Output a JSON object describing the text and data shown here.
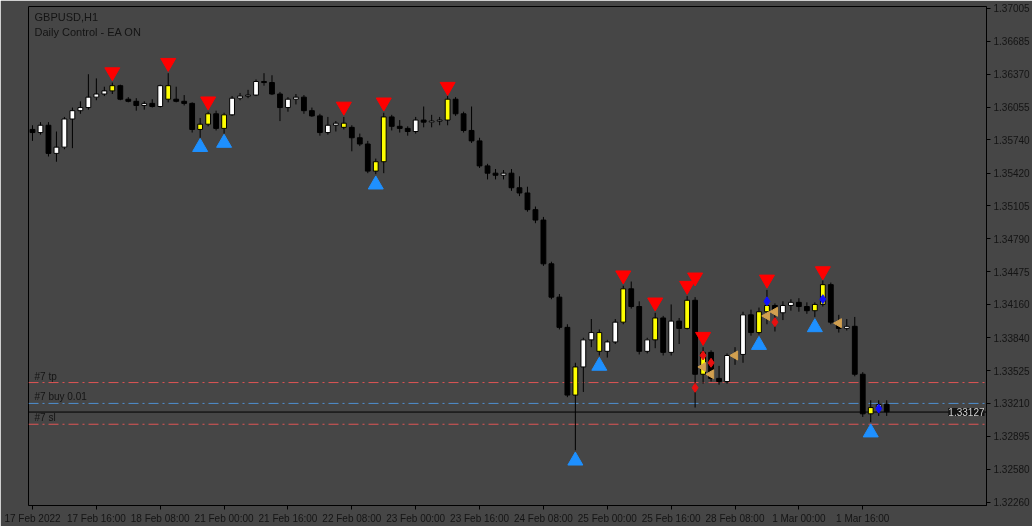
{
  "chart_data": {
    "type": "candlestick",
    "title": "GBPUSD,H1",
    "subtitle": "Daily Control - EA ON",
    "categories": [
      "17 Feb 2022",
      null,
      null,
      null,
      null,
      null,
      null,
      null,
      "17 Feb 16:00",
      null,
      null,
      null,
      null,
      null,
      null,
      null,
      "18 Feb 08:00",
      null,
      null,
      null,
      null,
      null,
      null,
      null,
      "21 Feb 00:00",
      null,
      null,
      null,
      null,
      null,
      null,
      null,
      "21 Feb 16:00",
      null,
      null,
      null,
      null,
      null,
      null,
      null,
      "22 Feb 08:00",
      null,
      null,
      null,
      null,
      null,
      null,
      null,
      "23 Feb 00:00",
      null,
      null,
      null,
      null,
      null,
      null,
      null,
      "23 Feb 16:00",
      null,
      null,
      null,
      null,
      null,
      null,
      null,
      "24 Feb 08:00",
      null,
      null,
      null,
      null,
      null,
      null,
      null,
      "25 Feb 00:00",
      null,
      null,
      null,
      null,
      null,
      null,
      null,
      "25 Feb 16:00",
      null,
      null,
      null,
      null,
      null,
      null,
      null,
      "28 Feb 08:00",
      null,
      null,
      null,
      null,
      null,
      null,
      null,
      "1 Mar 00:00",
      null,
      null,
      null,
      null,
      null,
      null,
      null,
      "1 Mar 16:00",
      null,
      null,
      null,
      null,
      null,
      null,
      null,
      null,
      null,
      null,
      null,
      null,
      null,
      null,
      null
    ],
    "ohlc": [
      [
        1.3584,
        1.3588,
        1.3573,
        1.3581
      ],
      [
        1.3581,
        1.3591,
        1.3579,
        1.3588
      ],
      [
        1.3588,
        1.3591,
        1.3558,
        1.3561
      ],
      [
        1.3561,
        1.3582,
        1.3553,
        1.3567
      ],
      [
        1.3567,
        1.3596,
        1.3565,
        1.3594
      ],
      [
        1.3594,
        1.3605,
        1.3566,
        1.3602
      ],
      [
        1.3602,
        1.3611,
        1.3599,
        1.3605
      ],
      [
        1.3605,
        1.3637,
        1.3603,
        1.3615
      ],
      [
        1.3615,
        1.3633,
        1.3612,
        1.3618
      ],
      [
        1.3618,
        1.3625,
        1.3616,
        1.3621
      ],
      [
        1.3621,
        1.3629,
        1.3618,
        1.3626
      ],
      [
        1.3626,
        1.3627,
        1.3612,
        1.3613
      ],
      [
        1.3613,
        1.3615,
        1.361,
        1.3611
      ],
      [
        1.3611,
        1.3614,
        1.3602,
        1.3607
      ],
      [
        1.3607,
        1.3611,
        1.3603,
        1.3609
      ],
      [
        1.3609,
        1.3613,
        1.3605,
        1.3606
      ],
      [
        1.3606,
        1.3627,
        1.3605,
        1.3626
      ],
      [
        1.3626,
        1.3638,
        1.361,
        1.3613
      ],
      [
        1.3613,
        1.3625,
        1.361,
        1.3611
      ],
      [
        1.3611,
        1.3617,
        1.3607,
        1.3609
      ],
      [
        1.3609,
        1.361,
        1.3581,
        1.3584
      ],
      [
        1.3584,
        1.3595,
        1.3576,
        1.3589
      ],
      [
        1.3589,
        1.3601,
        1.3587,
        1.3599
      ],
      [
        1.3599,
        1.3602,
        1.3583,
        1.3585
      ],
      [
        1.3585,
        1.36,
        1.358,
        1.3598
      ],
      [
        1.3598,
        1.3616,
        1.3597,
        1.3614
      ],
      [
        1.3614,
        1.3619,
        1.3612,
        1.3616
      ],
      [
        1.3616,
        1.3622,
        1.3614,
        1.3617
      ],
      [
        1.3617,
        1.3632,
        1.3616,
        1.363
      ],
      [
        1.363,
        1.3638,
        1.3626,
        1.3629
      ],
      [
        1.3629,
        1.3636,
        1.3617,
        1.3618
      ],
      [
        1.3618,
        1.362,
        1.3592,
        1.3605
      ],
      [
        1.3605,
        1.3615,
        1.3601,
        1.3613
      ],
      [
        1.3613,
        1.3618,
        1.3608,
        1.3615
      ],
      [
        1.3615,
        1.3617,
        1.3599,
        1.3602
      ],
      [
        1.3602,
        1.3605,
        1.3596,
        1.3597
      ],
      [
        1.3597,
        1.3599,
        1.3578,
        1.3581
      ],
      [
        1.3581,
        1.3596,
        1.3579,
        1.3588
      ],
      [
        1.3588,
        1.3592,
        1.3582,
        1.359
      ],
      [
        1.359,
        1.3596,
        1.3584,
        1.3586
      ],
      [
        1.3586,
        1.3588,
        1.3563,
        1.3576
      ],
      [
        1.3576,
        1.358,
        1.3568,
        1.357
      ],
      [
        1.357,
        1.3573,
        1.3542,
        1.3544
      ],
      [
        1.3544,
        1.3556,
        1.3541,
        1.3553
      ],
      [
        1.3553,
        1.36,
        1.3542,
        1.3596
      ],
      [
        1.3596,
        1.3598,
        1.3583,
        1.3587
      ],
      [
        1.3587,
        1.3593,
        1.3581,
        1.3585
      ],
      [
        1.3585,
        1.3587,
        1.3578,
        1.3582
      ],
      [
        1.3582,
        1.3596,
        1.358,
        1.3593
      ],
      [
        1.3593,
        1.3606,
        1.3586,
        1.3591
      ],
      [
        1.3591,
        1.3598,
        1.3586,
        1.3592
      ],
      [
        1.3592,
        1.3596,
        1.3588,
        1.3593
      ],
      [
        1.3593,
        1.3616,
        1.3588,
        1.3613
      ],
      [
        1.3613,
        1.3615,
        1.3597,
        1.3599
      ],
      [
        1.3599,
        1.3601,
        1.3581,
        1.3583
      ],
      [
        1.3583,
        1.3606,
        1.3571,
        1.3573
      ],
      [
        1.3573,
        1.3576,
        1.3547,
        1.3549
      ],
      [
        1.3549,
        1.3551,
        1.3536,
        1.3542
      ],
      [
        1.3542,
        1.3546,
        1.3536,
        1.354
      ],
      [
        1.354,
        1.3545,
        1.3536,
        1.3542
      ],
      [
        1.3542,
        1.3546,
        1.3525,
        1.3528
      ],
      [
        1.3528,
        1.3539,
        1.352,
        1.3523
      ],
      [
        1.3523,
        1.3529,
        1.3505,
        1.3507
      ],
      [
        1.3507,
        1.351,
        1.3494,
        1.3497
      ],
      [
        1.3497,
        1.35,
        1.3453,
        1.3455
      ],
      [
        1.3455,
        1.3457,
        1.3421,
        1.3423
      ],
      [
        1.3423,
        1.3426,
        1.3392,
        1.3394
      ],
      [
        1.3394,
        1.3397,
        1.3327,
        1.3329
      ],
      [
        1.3329,
        1.336,
        1.3276,
        1.3356
      ],
      [
        1.3356,
        1.3384,
        1.3332,
        1.3382
      ],
      [
        1.3382,
        1.3402,
        1.3375,
        1.3389
      ],
      [
        1.3389,
        1.3392,
        1.3367,
        1.3371
      ],
      [
        1.3371,
        1.3382,
        1.3365,
        1.338
      ],
      [
        1.338,
        1.3402,
        1.3378,
        1.3399
      ],
      [
        1.3399,
        1.3434,
        1.3397,
        1.3431
      ],
      [
        1.3431,
        1.3438,
        1.3412,
        1.3414
      ],
      [
        1.3414,
        1.3419,
        1.3368,
        1.3371
      ],
      [
        1.3371,
        1.3384,
        1.3369,
        1.3382
      ],
      [
        1.3382,
        1.3408,
        1.3374,
        1.3403
      ],
      [
        1.3403,
        1.3405,
        1.3367,
        1.337
      ],
      [
        1.337,
        1.3416,
        1.3367,
        1.34
      ],
      [
        1.34,
        1.3403,
        1.3378,
        1.3393
      ],
      [
        1.3393,
        1.3424,
        1.3392,
        1.342
      ],
      [
        1.342,
        1.3423,
        1.3317,
        1.3349
      ],
      [
        1.3349,
        1.3375,
        1.334,
        1.337
      ],
      [
        1.337,
        1.3372,
        1.3342,
        1.3345
      ],
      [
        1.3345,
        1.3357,
        1.3339,
        1.3342
      ],
      [
        1.3342,
        1.3369,
        1.334,
        1.3367
      ],
      [
        1.3367,
        1.3375,
        1.3358,
        1.3368
      ],
      [
        1.3368,
        1.3409,
        1.336,
        1.3406
      ],
      [
        1.3406,
        1.3411,
        1.3386,
        1.3389
      ],
      [
        1.3389,
        1.3413,
        1.3387,
        1.3409
      ],
      [
        1.3409,
        1.343,
        1.3397,
        1.3415
      ],
      [
        1.3415,
        1.3417,
        1.339,
        1.3408
      ],
      [
        1.3408,
        1.3419,
        1.3401,
        1.3415
      ],
      [
        1.3415,
        1.3421,
        1.341,
        1.3418
      ],
      [
        1.3418,
        1.3422,
        1.3409,
        1.3414
      ],
      [
        1.3414,
        1.3418,
        1.3407,
        1.341
      ],
      [
        1.341,
        1.3418,
        1.3404,
        1.3416
      ],
      [
        1.3416,
        1.3439,
        1.3414,
        1.3435
      ],
      [
        1.3435,
        1.3437,
        1.3397,
        1.3399
      ],
      [
        1.3399,
        1.3406,
        1.3389,
        1.3393
      ],
      [
        1.3393,
        1.3402,
        1.3391,
        1.3395
      ],
      [
        1.3395,
        1.3404,
        1.3347,
        1.3349
      ],
      [
        1.3349,
        1.3351,
        1.3308,
        1.3311
      ],
      [
        1.3311,
        1.3324,
        1.3303,
        1.3317
      ],
      [
        1.3317,
        1.3324,
        1.3309,
        1.332
      ],
      [
        1.332,
        1.3324,
        1.3309,
        1.3313
      ],
      null,
      null,
      null,
      null,
      null,
      null,
      null,
      null,
      null,
      null,
      null,
      null
    ],
    "colors": [
      "#000000",
      "#ffffff",
      "#000000",
      "#ffffff",
      "#ffffff",
      "#ffffff",
      "#ffffff",
      "#ffffff",
      "#ffffff",
      "#ffffff",
      "#ffff00",
      "#000000",
      "#000000",
      "#000000",
      "#ffffff",
      "#000000",
      "#ffffff",
      "#ffff00",
      "#000000",
      "#000000",
      "#000000",
      "#ffff00",
      "#ffff00",
      "#000000",
      "#ffff00",
      "#ffffff",
      "#ffffff",
      "#ffffff",
      "#ffffff",
      "#000000",
      "#000000",
      "#000000",
      "#ffffff",
      "#ffffff",
      "#000000",
      "#000000",
      "#000000",
      "#ffffff",
      "#ffffff",
      "#ffff00",
      "#000000",
      "#000000",
      "#000000",
      "#ffff00",
      "#ffff00",
      "#000000",
      "#000000",
      "#000000",
      "#ffffff",
      "#000000",
      "#ffffff",
      "#ffffff",
      "#ffff00",
      "#000000",
      "#000000",
      "#000000",
      "#000000",
      "#000000",
      "#000000",
      "#ffffff",
      "#000000",
      "#000000",
      "#000000",
      "#000000",
      "#000000",
      "#000000",
      "#000000",
      "#000000",
      "#ffff00",
      "#ffffff",
      "#ffffff",
      "#ffff00",
      "#ffffff",
      "#ffffff",
      "#ffff00",
      "#000000",
      "#000000",
      "#ffffff",
      "#ffff00",
      "#000000",
      "#ffffff",
      "#000000",
      "#ffff00",
      "#000000",
      "#ffff00",
      "#000000",
      "#000000",
      "#ffffff",
      "#ffffff",
      "#ffffff",
      "#000000",
      "#ffff00",
      "#ffff00",
      "#000000",
      "#ffffff",
      "#ffffff",
      "#000000",
      "#000000",
      "#ffff00",
      "#ffff00",
      "#000000",
      "#000000",
      "#ffffff",
      "#000000",
      "#000000",
      "#ffff00",
      "#ffffff",
      "#000000",
      null,
      null,
      null,
      null,
      null,
      null,
      null,
      null,
      null,
      null,
      null,
      null
    ],
    "series": [
      {
        "type": "scatter",
        "color": "#ff0000",
        "marker": "triangle",
        "values": [
          null,
          null,
          null,
          null,
          null,
          null,
          null,
          null,
          null,
          null,
          1.3639,
          null,
          null,
          null,
          null,
          null,
          null,
          1.3648,
          null,
          null,
          null,
          null,
          1.3611,
          null,
          null,
          null,
          null,
          null,
          null,
          null,
          null,
          null,
          null,
          null,
          null,
          null,
          null,
          null,
          null,
          1.3606,
          null,
          null,
          null,
          null,
          1.361,
          null,
          null,
          null,
          null,
          null,
          null,
          null,
          1.3625,
          null,
          null,
          null,
          null,
          null,
          null,
          null,
          null,
          null,
          null,
          null,
          null,
          null,
          null,
          null,
          null,
          null,
          null,
          null,
          null,
          null,
          1.3444,
          null,
          null,
          null,
          1.3418,
          null,
          null,
          null,
          1.3434,
          1.3442,
          1.3385,
          null,
          null,
          null,
          null,
          null,
          null,
          null,
          1.344,
          null,
          null,
          null,
          null,
          null,
          null,
          1.3448,
          null,
          null,
          null,
          null,
          null,
          null,
          null,
          null,
          null,
          null,
          null,
          null,
          null,
          null,
          null,
          null,
          null,
          null,
          null,
          null
        ]
      },
      {
        "type": "scatter",
        "color": "#1e90ff",
        "marker": "triangle",
        "values": [
          null,
          null,
          null,
          null,
          null,
          null,
          null,
          null,
          null,
          null,
          null,
          null,
          null,
          null,
          null,
          null,
          null,
          null,
          null,
          null,
          null,
          1.3567,
          null,
          null,
          1.3571,
          null,
          null,
          null,
          null,
          null,
          null,
          null,
          null,
          null,
          null,
          null,
          null,
          null,
          null,
          null,
          null,
          null,
          null,
          1.3531,
          null,
          null,
          null,
          null,
          null,
          null,
          null,
          null,
          null,
          null,
          null,
          null,
          null,
          null,
          null,
          null,
          null,
          null,
          null,
          null,
          null,
          null,
          null,
          null,
          1.3266,
          null,
          null,
          1.3357,
          null,
          null,
          null,
          null,
          null,
          null,
          null,
          null,
          null,
          null,
          null,
          null,
          null,
          null,
          null,
          null,
          null,
          null,
          null,
          1.3377,
          null,
          null,
          null,
          null,
          null,
          null,
          1.3394,
          null,
          null,
          null,
          null,
          null,
          null,
          1.3293,
          null,
          null,
          null,
          null,
          null,
          null,
          null,
          null,
          null,
          null,
          null,
          null,
          null,
          null
        ]
      },
      {
        "type": "scatter",
        "color": "#e81010",
        "marker": "diamond",
        "values": [
          null,
          null,
          null,
          null,
          null,
          null,
          null,
          null,
          null,
          null,
          null,
          null,
          null,
          null,
          null,
          null,
          null,
          null,
          null,
          null,
          null,
          null,
          null,
          null,
          null,
          null,
          null,
          null,
          null,
          null,
          null,
          null,
          null,
          null,
          null,
          null,
          null,
          null,
          null,
          null,
          null,
          null,
          null,
          null,
          null,
          null,
          null,
          null,
          null,
          null,
          null,
          null,
          null,
          null,
          null,
          null,
          null,
          null,
          null,
          null,
          null,
          null,
          null,
          null,
          null,
          null,
          null,
          null,
          null,
          null,
          null,
          null,
          null,
          null,
          null,
          null,
          null,
          null,
          null,
          null,
          null,
          null,
          null,
          1.3336,
          1.3367,
          1.336,
          null,
          null,
          null,
          null,
          null,
          null,
          null,
          1.3399,
          null,
          null,
          null,
          null,
          null,
          null,
          null,
          null,
          null,
          null,
          null,
          null,
          null,
          null,
          null,
          null,
          null,
          null,
          null,
          null,
          null,
          null,
          null,
          null,
          null,
          null
        ]
      },
      {
        "type": "scatter",
        "color": "#d2a050",
        "marker": "triangle",
        "values": [
          null,
          null,
          null,
          null,
          null,
          null,
          null,
          null,
          null,
          null,
          null,
          null,
          null,
          null,
          null,
          null,
          null,
          null,
          null,
          null,
          null,
          null,
          null,
          null,
          null,
          null,
          null,
          null,
          null,
          null,
          null,
          null,
          null,
          null,
          null,
          null,
          null,
          null,
          null,
          null,
          null,
          null,
          null,
          null,
          null,
          null,
          null,
          null,
          null,
          null,
          null,
          null,
          null,
          null,
          null,
          null,
          null,
          null,
          null,
          null,
          null,
          null,
          null,
          null,
          null,
          null,
          null,
          null,
          null,
          null,
          null,
          null,
          null,
          null,
          null,
          null,
          null,
          null,
          null,
          null,
          null,
          null,
          null,
          null,
          1.3356,
          1.3349,
          null,
          null,
          1.3367,
          null,
          null,
          null,
          1.3405,
          1.3409,
          null,
          null,
          null,
          null,
          null,
          null,
          null,
          1.3398,
          null,
          null,
          null,
          null,
          null,
          null,
          null,
          null,
          null,
          null,
          null,
          null,
          null,
          null,
          null,
          null,
          null,
          null
        ]
      },
      {
        "type": "scatter",
        "color": "#1010ff",
        "marker": "diamond",
        "values": [
          null,
          null,
          null,
          null,
          null,
          null,
          null,
          null,
          null,
          null,
          null,
          null,
          null,
          null,
          null,
          null,
          null,
          null,
          null,
          null,
          null,
          null,
          null,
          null,
          null,
          null,
          null,
          null,
          null,
          null,
          null,
          null,
          null,
          null,
          null,
          null,
          null,
          null,
          null,
          null,
          null,
          null,
          null,
          null,
          null,
          null,
          null,
          null,
          null,
          null,
          null,
          null,
          null,
          null,
          null,
          null,
          null,
          null,
          null,
          null,
          null,
          null,
          null,
          null,
          null,
          null,
          null,
          null,
          null,
          null,
          null,
          null,
          null,
          null,
          null,
          null,
          null,
          null,
          null,
          null,
          null,
          null,
          null,
          null,
          null,
          null,
          null,
          null,
          null,
          null,
          null,
          null,
          1.3419,
          null,
          null,
          null,
          null,
          null,
          null,
          1.3421,
          null,
          null,
          null,
          null,
          null,
          null,
          1.3316,
          null,
          null,
          null,
          null,
          null,
          null,
          null,
          null,
          null,
          null,
          null,
          null,
          null
        ]
      }
    ],
    "ylim": [
      1.3223,
      1.3702
    ],
    "yticks": [
      1.37005,
      1.36685,
      {
        "value": 1.3637,
        "label": "1.36370"
      },
      1.36055,
      {
        "value": 1.3574,
        "label": "1.35740"
      },
      {
        "value": 1.3542,
        "label": "1.35420"
      },
      1.35105,
      {
        "value": 1.3479,
        "label": "1.34790"
      },
      1.34475,
      {
        "value": 1.3416,
        "label": "1.34160"
      },
      {
        "value": 1.3384,
        "label": "1.33840"
      },
      1.33525,
      {
        "value": 1.3321,
        "label": "1.33210"
      },
      1.32895,
      {
        "value": 1.3258,
        "label": "1.32580"
      },
      {
        "value": 1.3226,
        "label": "1.32260"
      }
    ],
    "ref_lines": [
      {
        "axis": "y",
        "value": 1.3341,
        "label": "#7 tp",
        "color": "#e05555",
        "line_style": "dashed"
      },
      {
        "axis": "y",
        "value": 1.3321,
        "label": "#7 buy 0.01",
        "color": "#4f8fd0",
        "line_style": "dashed"
      },
      {
        "axis": "y",
        "value": 1.33127,
        "label": "1.33127",
        "color": "#000000",
        "line_style": "solid"
      },
      {
        "axis": "y",
        "value": 1.3301,
        "label": "#7 sl",
        "color": "#e05555",
        "line_style": "dashed"
      }
    ]
  }
}
